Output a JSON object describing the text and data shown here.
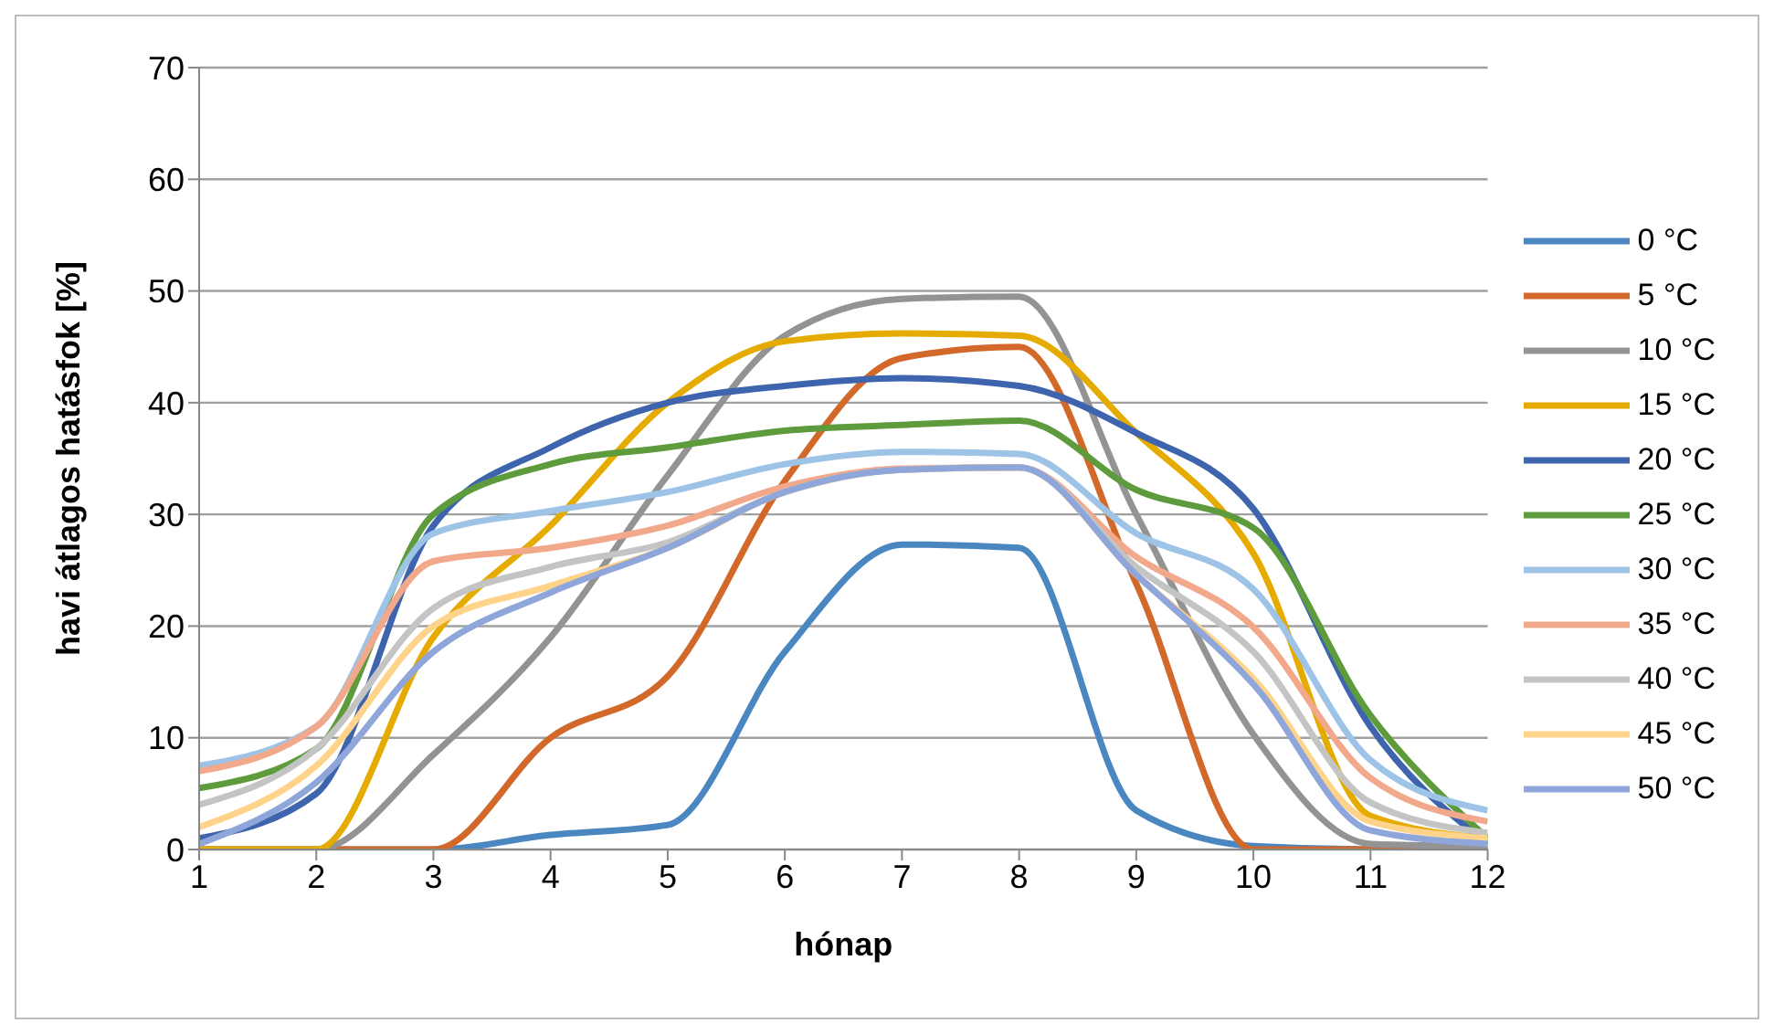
{
  "chart_data": {
    "type": "line",
    "xlabel": "hónap",
    "ylabel": "havi átlagos hatásfok [%]",
    "x": [
      1,
      2,
      3,
      4,
      5,
      6,
      7,
      8,
      9,
      10,
      11,
      12
    ],
    "xlim": [
      1,
      12
    ],
    "xticks": [
      1,
      2,
      3,
      4,
      5,
      6,
      7,
      8,
      9,
      10,
      11,
      12
    ],
    "ylim": [
      0,
      70
    ],
    "yticks": [
      0,
      10,
      20,
      30,
      40,
      50,
      60,
      70
    ],
    "grid": "y",
    "legend": "right",
    "marker": "none",
    "line_style": "solid",
    "series": [
      {
        "name": "0 °C",
        "color": "#4a86c0",
        "values": [
          0,
          0,
          0,
          1.3,
          2.2,
          17.7,
          27.3,
          27,
          3.5,
          0.3,
          0,
          0
        ]
      },
      {
        "name": "5 °C",
        "color": "#d2692a",
        "values": [
          0,
          0,
          0,
          10,
          15.5,
          33,
          44,
          45,
          23.8,
          0,
          0,
          0
        ]
      },
      {
        "name": "10 °C",
        "color": "#939393",
        "values": [
          0,
          0,
          8.5,
          19,
          33.5,
          46,
          49.3,
          49.5,
          30,
          10.3,
          0.5,
          0.3
        ]
      },
      {
        "name": "15 °C",
        "color": "#e5ab00",
        "values": [
          0,
          0,
          19,
          29,
          40,
          45.5,
          46.2,
          46,
          37.3,
          26.5,
          3,
          1
        ]
      },
      {
        "name": "20 °C",
        "color": "#3e64ae",
        "values": [
          1,
          5,
          29,
          36,
          40,
          41.5,
          42.2,
          41.5,
          37.3,
          30.5,
          11,
          0.5
        ]
      },
      {
        "name": "25 °C",
        "color": "#5e9b3d",
        "values": [
          5.5,
          9,
          30,
          34.5,
          36,
          37.5,
          38,
          38.4,
          32.2,
          28.8,
          12,
          1
        ]
      },
      {
        "name": "30 °C",
        "color": "#9dc3e6",
        "values": [
          7.5,
          11,
          28.3,
          30.3,
          32,
          34.5,
          35.6,
          35.4,
          28.3,
          23.3,
          8,
          3.5
        ]
      },
      {
        "name": "35 °C",
        "color": "#f2a98b",
        "values": [
          7,
          11,
          25.8,
          27,
          29,
          32.5,
          34.1,
          34.2,
          26.2,
          19.9,
          6.4,
          2.5
        ]
      },
      {
        "name": "40 °C",
        "color": "#c4c4c4",
        "values": [
          4,
          9,
          21.6,
          25.3,
          27.5,
          32,
          34,
          34.2,
          25.3,
          17.7,
          4.2,
          1.5
        ]
      },
      {
        "name": "45 °C",
        "color": "#ffd389",
        "values": [
          2,
          7.5,
          20,
          23.6,
          27,
          32,
          34,
          34.2,
          24.6,
          15.3,
          2.5,
          1
        ]
      },
      {
        "name": "50 °C",
        "color": "#8fa6da",
        "values": [
          0.5,
          6,
          17.7,
          23,
          27,
          32,
          34,
          34.2,
          24.6,
          14.8,
          1.7,
          0.5
        ]
      }
    ]
  }
}
